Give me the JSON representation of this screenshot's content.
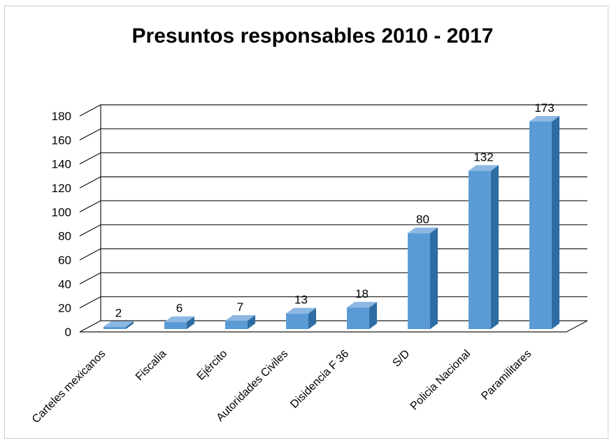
{
  "chart_data": {
    "type": "bar",
    "title": "Presuntos responsables 2010 - 2017",
    "categories": [
      "Carteles mexicanos",
      "Fiscalia",
      "Ejército",
      "Autoridades Civiles",
      "Disidencia F 36",
      "S/D",
      "Policia Nacional",
      "Paramilitares"
    ],
    "values": [
      2,
      6,
      7,
      13,
      18,
      80,
      132,
      173
    ],
    "data_labels": [
      "2",
      "6",
      "7",
      "13",
      "18",
      "80",
      "132",
      "173"
    ],
    "y_ticks": [
      "0",
      "20",
      "40",
      "60",
      "80",
      "100",
      "120",
      "140",
      "160",
      "180"
    ],
    "ylim": [
      0,
      180
    ],
    "grid": true,
    "legend": "none",
    "style": "3d-column",
    "colors": {
      "bar_front": "#5b9bd5",
      "bar_side": "#2e6da4",
      "bar_top": "#8db8e3"
    }
  }
}
